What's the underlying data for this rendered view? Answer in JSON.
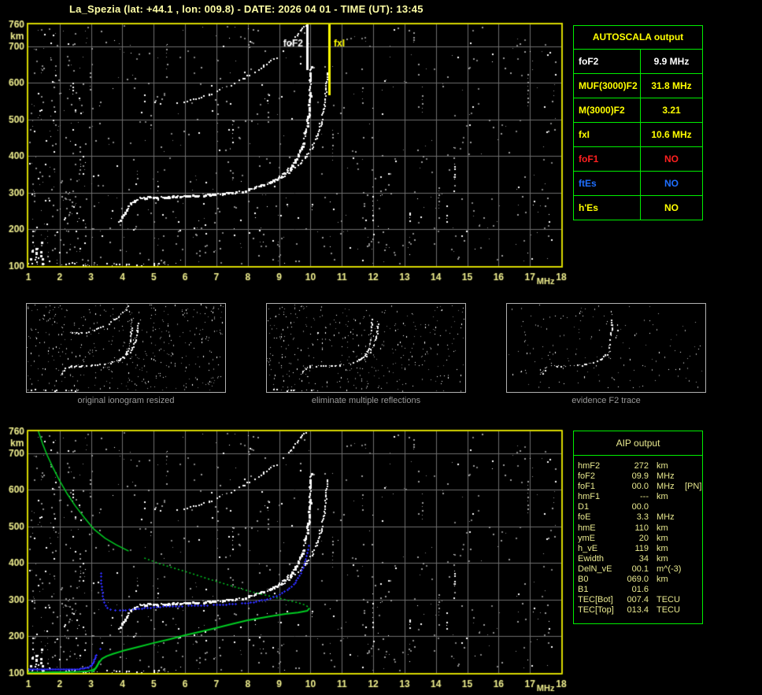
{
  "title": "La_Spezia (lat: +44.1 , lon: 009.8) - DATE: 2026 04 01 - TIME (UT): 13:45",
  "colors": {
    "title": "#ffffa6",
    "axis_labels": "#f0ef8e",
    "plot_frame": "#d8d800",
    "grid": "#6e6e6e",
    "table_border": "#00ee00",
    "autoscala_title": "#ffff00",
    "aip_text": "#e9e98f",
    "panel_caption": "#9a9a9a",
    "trace_white": "#ffffff",
    "profile_green": "#00cc22",
    "restored_blue": "#2d2dff",
    "noise_gray": "#7e7e7e"
  },
  "autoscala": {
    "title": "AUTOSCALA output",
    "rows": [
      {
        "label": "foF2",
        "value": "9.9 MHz",
        "color": "#ffffff"
      },
      {
        "label": "MUF(3000)F2",
        "value": "31.8 MHz",
        "color": "#ffff00"
      },
      {
        "label": "M(3000)F2",
        "value": "3.21",
        "color": "#ffff00"
      },
      {
        "label": "fxI",
        "value": "10.6 MHz",
        "color": "#ffff00"
      },
      {
        "label": "foF1",
        "value": "NO",
        "color": "#ff2020"
      },
      {
        "label": "ftEs",
        "value": "NO",
        "color": "#1f6fff"
      },
      {
        "label": "h'Es",
        "value": "NO",
        "color": "#ffff00"
      }
    ]
  },
  "aip": {
    "title": "AIP output",
    "rows": [
      {
        "label": "hmF2",
        "value": "272",
        "unit": "km",
        "note": ""
      },
      {
        "label": "foF2",
        "value": "09.9",
        "unit": "MHz",
        "note": ""
      },
      {
        "label": "foF1",
        "value": "00.0",
        "unit": "MHz",
        "note": "[PN]"
      },
      {
        "label": "hmF1",
        "value": "---",
        "unit": "km",
        "note": ""
      },
      {
        "label": "D1",
        "value": "00.0",
        "unit": "",
        "note": ""
      },
      {
        "label": "foE",
        "value": "3.3",
        "unit": "MHz",
        "note": ""
      },
      {
        "label": "hmE",
        "value": "110",
        "unit": "km",
        "note": ""
      },
      {
        "label": "ymE",
        "value": "20",
        "unit": "km",
        "note": ""
      },
      {
        "label": "h_vE",
        "value": "119",
        "unit": "km",
        "note": ""
      },
      {
        "label": "Ewidth",
        "value": "34",
        "unit": "km",
        "note": ""
      },
      {
        "label": "DelN_vE",
        "value": "00.1",
        "unit": "m^(-3)",
        "note": ""
      },
      {
        "label": "B0",
        "value": "069.0",
        "unit": "km",
        "note": ""
      },
      {
        "label": "B1",
        "value": "01.6",
        "unit": "",
        "note": ""
      },
      {
        "label": "TEC[Bot]",
        "value": "007.4",
        "unit": "TECU",
        "note": ""
      },
      {
        "label": "TEC[Top]",
        "value": "013.4",
        "unit": "TECU",
        "note": ""
      }
    ]
  },
  "panels": [
    {
      "caption": "original ionogram resized"
    },
    {
      "caption": "eliminate multiple reflections"
    },
    {
      "caption": "evidence F2 trace"
    }
  ],
  "chart_data": [
    {
      "id": "main_ionogram",
      "type": "scatter",
      "xlabel": "MHz",
      "ylabel": "km",
      "xlim": [
        1,
        18
      ],
      "ylim": [
        100,
        760
      ],
      "xticks": [
        1,
        2,
        3,
        4,
        5,
        6,
        7,
        8,
        9,
        10,
        11,
        12,
        13,
        14,
        15,
        16,
        17,
        18
      ],
      "yticks": [
        760,
        700,
        600,
        500,
        400,
        300,
        200,
        100
      ],
      "grid": true,
      "markers": [
        {
          "label": "foF2",
          "freq_mhz": 9.9,
          "color": "#ffffff"
        },
        {
          "label": "fxI",
          "freq_mhz": 10.6,
          "color": "#ffff00"
        }
      ],
      "series": [
        {
          "key": "f2o",
          "name": "F2 trace O-mode",
          "color": "#ffffff",
          "points": [
            [
              3.85,
              224
            ],
            [
              3.95,
              234
            ],
            [
              4.05,
              247
            ],
            [
              4.15,
              259
            ],
            [
              4.25,
              271
            ],
            [
              4.38,
              281
            ],
            [
              4.55,
              287
            ],
            [
              4.8,
              289
            ],
            [
              5.2,
              290
            ],
            [
              5.6,
              291
            ],
            [
              6.0,
              292
            ],
            [
              6.4,
              294
            ],
            [
              6.8,
              296
            ],
            [
              7.2,
              299
            ],
            [
              7.6,
              303
            ],
            [
              8.0,
              310
            ],
            [
              8.35,
              319
            ],
            [
              8.7,
              331
            ],
            [
              9.0,
              346
            ],
            [
              9.25,
              363
            ],
            [
              9.45,
              383
            ],
            [
              9.6,
              405
            ],
            [
              9.72,
              430
            ],
            [
              9.81,
              458
            ],
            [
              9.88,
              492
            ],
            [
              9.93,
              530
            ],
            [
              9.96,
              570
            ],
            [
              9.98,
              612
            ],
            [
              9.99,
              645
            ]
          ]
        },
        {
          "key": "f2x",
          "name": "F2 trace X-mode",
          "color": "#ffffff",
          "points": [
            [
              8.75,
              330
            ],
            [
              9.05,
              343
            ],
            [
              9.35,
              360
            ],
            [
              9.6,
              379
            ],
            [
              9.85,
              402
            ],
            [
              10.05,
              428
            ],
            [
              10.2,
              458
            ],
            [
              10.32,
              492
            ],
            [
              10.4,
              528
            ],
            [
              10.46,
              565
            ],
            [
              10.5,
              600
            ],
            [
              10.52,
              628
            ]
          ]
        },
        {
          "key": "hop2",
          "name": "second reflection",
          "color": "#ffffff",
          "points": [
            [
              4.7,
              551
            ],
            [
              5.0,
              548
            ],
            [
              5.35,
              545
            ],
            [
              5.7,
              547
            ],
            [
              6.05,
              552
            ],
            [
              6.4,
              560
            ],
            [
              6.75,
              571
            ],
            [
              7.1,
              583
            ],
            [
              7.45,
              596
            ],
            [
              7.8,
              611
            ],
            [
              8.15,
              628
            ],
            [
              8.5,
              647
            ],
            [
              8.8,
              666
            ],
            [
              9.1,
              688
            ],
            [
              9.35,
              710
            ],
            [
              9.55,
              731
            ],
            [
              9.7,
              750
            ],
            [
              9.8,
              758
            ]
          ]
        },
        {
          "key": "eRem",
          "name": "E-region echoes",
          "color": "#ffffff",
          "points": [
            [
              1.0,
              107
            ],
            [
              1.25,
              105
            ],
            [
              1.5,
              108
            ],
            [
              1.8,
              110
            ],
            [
              2.1,
              106
            ],
            [
              2.45,
              108
            ],
            [
              2.8,
              105
            ],
            [
              4.3,
              104
            ],
            [
              4.7,
              106
            ],
            [
              5.1,
              103
            ],
            [
              5.4,
              105
            ]
          ]
        }
      ]
    },
    {
      "id": "profile_ionogram",
      "type": "scatter",
      "xlabel": "MHz",
      "ylabel": "km",
      "xlim": [
        1,
        18
      ],
      "ylim": [
        100,
        760
      ],
      "xticks": [
        1,
        2,
        3,
        4,
        5,
        6,
        7,
        8,
        9,
        10,
        11,
        12,
        13,
        14,
        15,
        16,
        17,
        18
      ],
      "yticks": [
        760,
        700,
        600,
        500,
        400,
        300,
        200,
        100
      ],
      "grid": true,
      "ionogram_series_from": 0,
      "series": [
        {
          "key": "profTop",
          "name": "N(h) profile topside",
          "color": "#00cc22",
          "points": [
            [
              1.32,
              760
            ],
            [
              1.45,
              727
            ],
            [
              1.6,
              695
            ],
            [
              1.78,
              662
            ],
            [
              2.0,
              625
            ],
            [
              2.25,
              588
            ],
            [
              2.5,
              556
            ],
            [
              2.8,
              523
            ],
            [
              3.1,
              492
            ],
            [
              3.45,
              468
            ],
            [
              3.8,
              450
            ],
            [
              4.2,
              433
            ],
            [
              4.7,
              414
            ],
            [
              5.2,
              398
            ],
            [
              5.7,
              385
            ],
            [
              6.2,
              372
            ],
            [
              6.7,
              358
            ],
            [
              7.2,
              345
            ],
            [
              7.7,
              332
            ],
            [
              8.2,
              320
            ],
            [
              8.7,
              310
            ],
            [
              9.2,
              300
            ],
            [
              9.6,
              292
            ],
            [
              9.85,
              285
            ],
            [
              9.97,
              277
            ]
          ]
        },
        {
          "key": "profBot",
          "name": "N(h) profile bottomside",
          "color": "#00cc22",
          "points": [
            [
              9.97,
              277
            ],
            [
              9.9,
              270
            ],
            [
              9.6,
              265
            ],
            [
              9.2,
              261
            ],
            [
              8.8,
              256
            ],
            [
              8.4,
              250
            ],
            [
              8.0,
              244
            ],
            [
              7.5,
              234
            ],
            [
              7.0,
              223
            ],
            [
              6.5,
              213
            ],
            [
              6.0,
              203
            ],
            [
              5.5,
              192
            ],
            [
              5.0,
              182
            ],
            [
              4.5,
              171
            ],
            [
              4.0,
              160
            ],
            [
              3.7,
              152
            ],
            [
              3.5,
              146
            ],
            [
              3.35,
              139
            ],
            [
              3.27,
              130
            ],
            [
              3.2,
              121
            ],
            [
              3.14,
              112
            ],
            [
              3.08,
              106
            ],
            [
              3.02,
              102
            ]
          ]
        },
        {
          "key": "profE",
          "name": "N(h) profile E layer",
          "color": "#00cc22",
          "points": [
            [
              1.0,
              101
            ],
            [
              1.4,
              101
            ],
            [
              1.8,
              102
            ],
            [
              2.2,
              102
            ],
            [
              2.6,
              103
            ],
            [
              2.9,
              105
            ],
            [
              3.05,
              108
            ],
            [
              3.15,
              113
            ],
            [
              3.2,
              119
            ],
            [
              3.24,
              127
            ],
            [
              3.27,
              133
            ]
          ]
        },
        {
          "key": "blueFlat",
          "name": "restored trace E",
          "color": "#2d2dff",
          "points": [
            [
              1.0,
              110
            ],
            [
              2.5,
              111
            ],
            [
              2.75,
              113
            ],
            [
              2.9,
              116
            ],
            [
              3.0,
              121
            ],
            [
              3.06,
              129
            ],
            [
              3.11,
              139
            ],
            [
              3.15,
              150
            ]
          ]
        },
        {
          "key": "blueUpper",
          "name": "restored trace F2",
          "color": "#2d2dff",
          "points": [
            [
              3.3,
              373
            ],
            [
              3.33,
              336
            ],
            [
              3.36,
              311
            ],
            [
              3.4,
              294
            ],
            [
              3.45,
              284
            ],
            [
              3.52,
              278
            ],
            [
              3.62,
              274
            ],
            [
              3.75,
              272
            ],
            [
              3.92,
              272
            ],
            [
              4.1,
              273
            ],
            [
              4.35,
              275
            ],
            [
              4.7,
              278
            ],
            [
              5.1,
              281
            ],
            [
              5.6,
              283
            ],
            [
              6.1,
              284
            ],
            [
              6.6,
              285
            ],
            [
              7.1,
              287
            ],
            [
              7.6,
              289
            ],
            [
              8.0,
              292
            ],
            [
              8.35,
              297
            ],
            [
              8.7,
              305
            ],
            [
              9.0,
              315
            ],
            [
              9.25,
              327
            ],
            [
              9.45,
              342
            ],
            [
              9.6,
              360
            ],
            [
              9.72,
              381
            ],
            [
              9.82,
              405
            ],
            [
              9.89,
              428
            ],
            [
              9.93,
              448
            ]
          ]
        },
        {
          "key": "bluePts",
          "name": "restored isolated points",
          "color": "#2d2dff",
          "points": [
            [
              3.28,
              166
            ],
            [
              3.3,
              373
            ]
          ]
        }
      ]
    }
  ]
}
